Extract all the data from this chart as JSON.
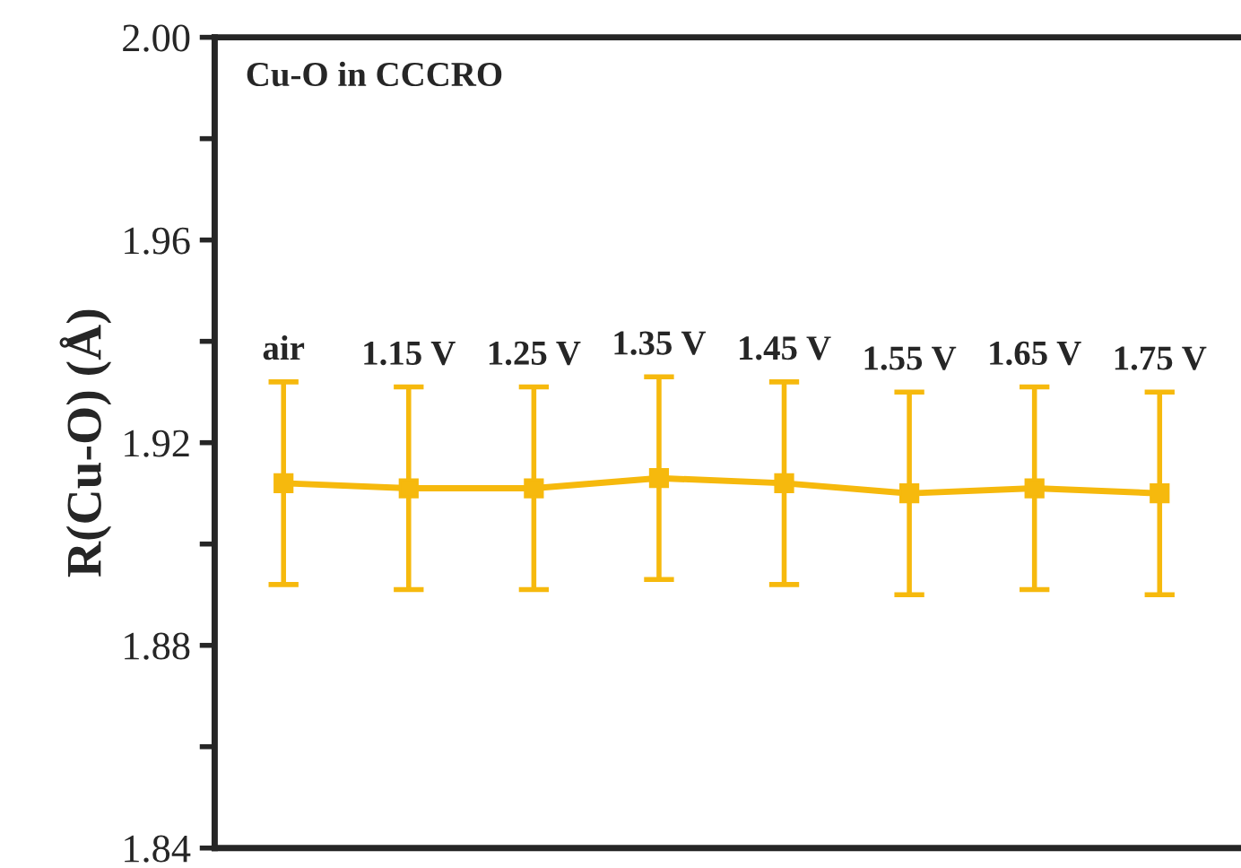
{
  "chart_data": {
    "type": "line",
    "title": "Cu-O in CCCRO",
    "ylabel": "R(Cu-O) (Å)",
    "categories": [
      null,
      null,
      null,
      null,
      null,
      null,
      null,
      null
    ],
    "series": [
      {
        "color": "#f6b90d",
        "values": [
          1.912,
          1.911,
          1.911,
          1.913,
          1.912,
          1.91,
          1.911,
          1.91
        ],
        "errors": [
          0.02,
          0.02,
          0.02,
          0.02,
          0.02,
          0.02,
          0.02,
          0.02
        ]
      }
    ],
    "annotations": [
      "air",
      "1.15 V",
      "1.25 V",
      "1.35 V",
      "1.45 V",
      "1.55 V",
      "1.65 V",
      "1.75 V"
    ],
    "ylim": [
      1.84,
      2.0
    ],
    "yticks": [
      1.84,
      {
        "value": 1.86,
        "label": null
      },
      1.88,
      {
        "value": 1.9,
        "label": null
      },
      1.92,
      {
        "value": 1.94,
        "label": null
      },
      1.96,
      {
        "value": 1.98,
        "label": null
      },
      "2.00"
    ],
    "marker": "square",
    "line_style": "solid",
    "grid": false,
    "legend": false,
    "tick_labels": "y"
  }
}
